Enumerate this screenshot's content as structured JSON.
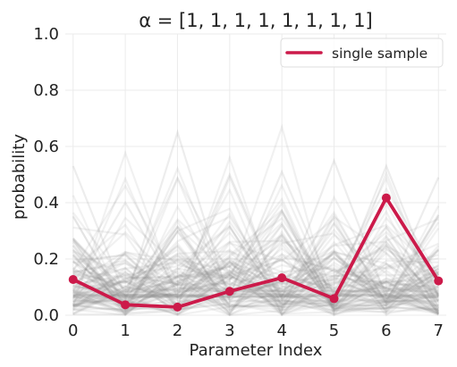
{
  "chart_data": {
    "type": "line",
    "title": "α = [1, 1, 1, 1, 1, 1, 1, 1]",
    "xlabel": "Parameter Index",
    "ylabel": "probability",
    "xlim": [
      -0.15,
      7.15
    ],
    "ylim": [
      0,
      1.0
    ],
    "x": [
      0,
      1,
      2,
      3,
      4,
      5,
      6,
      7
    ],
    "x_ticks": [
      "0",
      "1",
      "2",
      "3",
      "4",
      "5",
      "6",
      "7"
    ],
    "y_ticks": [
      "0.0",
      "0.2",
      "0.4",
      "0.6",
      "0.8",
      "1.0"
    ],
    "grid": true,
    "legend_position": "top-right",
    "series": [
      {
        "name": "single sample",
        "color": "#cc1a4a",
        "values": [
          0.127,
          0.037,
          0.029,
          0.085,
          0.133,
          0.059,
          0.417,
          0.122
        ]
      }
    ],
    "background_samples": {
      "color": "#888888",
      "opacity": 0.12,
      "count": 100,
      "max_values": [
        0.53,
        0.4,
        0.65,
        0.5,
        0.51,
        0.55,
        0.53,
        0.49
      ]
    }
  }
}
